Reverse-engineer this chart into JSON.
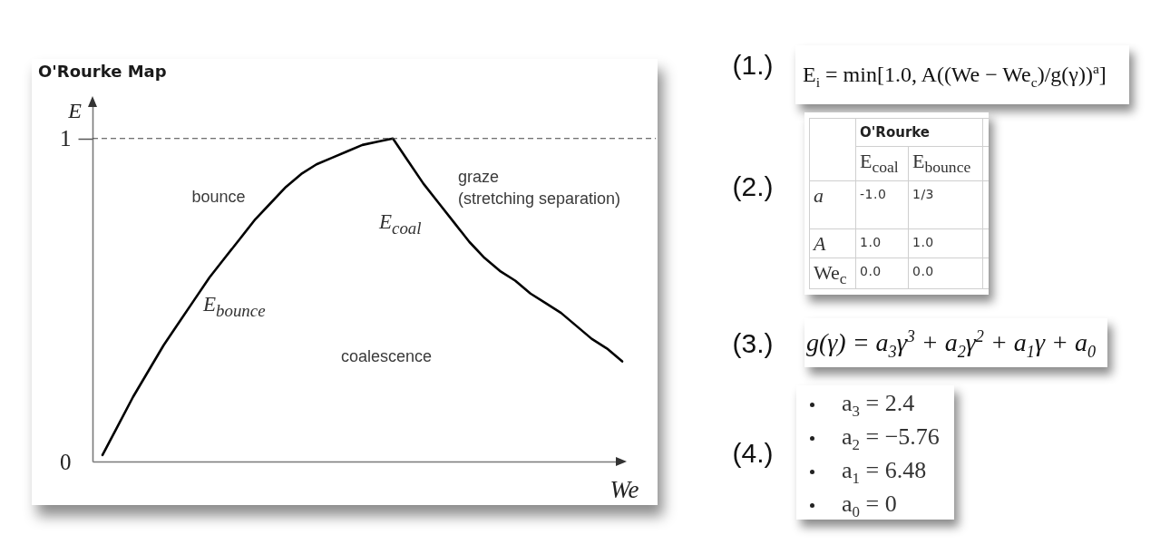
{
  "chart_data": {
    "type": "line",
    "title": "O'Rourke Map",
    "xlabel": "We",
    "ylabel": "E",
    "categories": [
      null,
      null,
      null,
      null,
      null,
      null,
      null,
      null,
      null,
      null,
      null,
      null,
      null,
      null,
      null,
      null,
      null,
      null,
      null,
      null,
      null,
      null,
      null,
      null,
      null,
      null,
      null,
      null,
      null,
      null,
      null,
      null,
      null,
      null,
      null
    ],
    "series": [
      {
        "color": "#000000",
        "values": [
          0.02,
          0.11,
          0.2,
          0.28,
          0.36,
          0.43,
          0.5,
          0.57,
          0.63,
          0.69,
          0.75,
          0.8,
          0.85,
          0.89,
          0.92,
          0.94,
          0.96,
          0.98,
          0.99,
          1.0,
          0.93,
          0.86,
          0.8,
          0.74,
          0.68,
          0.63,
          0.59,
          0.56,
          0.52,
          0.49,
          0.46,
          0.42,
          0.38,
          0.35,
          0.31
        ]
      }
    ],
    "ylim": [
      0,
      1.12
    ],
    "yticks": [
      0,
      1
    ],
    "tick_labels": "y",
    "ref_lines": [
      {
        "axis": "y",
        "value": 1,
        "color": "#444444",
        "line_style": "dashed"
      }
    ],
    "annotations": [
      "bounce",
      "graze\n(stretching separation)",
      "E$_{coal}$",
      "E$_{bounce}$",
      "coalescence",
      "(1.)",
      "E$_{i}$ = min[1.0, A((We − We$_{c}$)/g(γ))$^{a}$]",
      "(2.)",
      "O'Rourke",
      "E$_{coal}$",
      "E$_{bounce}$",
      "a",
      "-1.0",
      "1/3",
      "A",
      "1.0",
      "1.0",
      "We$_{c}$",
      "0.0",
      "0.0",
      "(3.)",
      "g(γ) = a$_{3}$γ$^{3}$ + a$_{2}$γ$^{2}$ + a$_{1}$γ + a$_{0}$",
      "(4.)",
      "a$_{3}$ = 2.4",
      "a$_{2}$ = −5.76",
      "a$_{1}$ = 6.48",
      "a$_{0}$ = 0"
    ]
  }
}
